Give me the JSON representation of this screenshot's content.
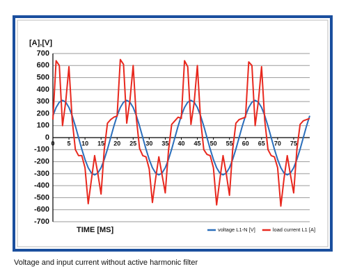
{
  "chart_data": {
    "type": "line",
    "y_label": "[A],[V]",
    "x_label": "TIME [MS]",
    "x": [
      0,
      1,
      2,
      3,
      4,
      5,
      6,
      7,
      8,
      9,
      10,
      11,
      12,
      13,
      14,
      15,
      16,
      17,
      18,
      19,
      20,
      21,
      22,
      23,
      24,
      25,
      26,
      27,
      28,
      29,
      30,
      31,
      32,
      33,
      34,
      35,
      36,
      37,
      38,
      39,
      40,
      41,
      42,
      43,
      44,
      45,
      46,
      47,
      48,
      49,
      50,
      51,
      52,
      53,
      54,
      55,
      56,
      57,
      58,
      59,
      60,
      61,
      62,
      63,
      64,
      65,
      66,
      67,
      68,
      69,
      70,
      71,
      72,
      73,
      74,
      75,
      76,
      77,
      78,
      79,
      80
    ],
    "series": [
      {
        "name": "voltage L1-N [V]",
        "color": "#2a6ebb",
        "values": [
          182,
          251,
          295,
          310,
          295,
          251,
          182,
          96,
          0,
          -96,
          -182,
          -251,
          -295,
          -310,
          -295,
          -251,
          -182,
          -96,
          0,
          96,
          182,
          251,
          295,
          310,
          295,
          251,
          182,
          96,
          0,
          -96,
          -182,
          -251,
          -295,
          -310,
          -295,
          -251,
          -182,
          -96,
          0,
          96,
          182,
          251,
          295,
          310,
          295,
          251,
          182,
          96,
          0,
          -96,
          -182,
          -251,
          -295,
          -310,
          -295,
          -251,
          -182,
          -96,
          0,
          96,
          182,
          251,
          295,
          310,
          295,
          251,
          182,
          96,
          0,
          -96,
          -182,
          -251,
          -295,
          -310,
          -295,
          -251,
          -182,
          -96,
          0,
          96,
          182
        ]
      },
      {
        "name": "load current L1 [A]",
        "color": "#e8281e",
        "values": [
          150,
          640,
          600,
          100,
          300,
          590,
          150,
          -100,
          -150,
          -150,
          -250,
          -550,
          -350,
          -150,
          -300,
          -470,
          -100,
          120,
          150,
          170,
          180,
          650,
          610,
          120,
          310,
          600,
          160,
          -90,
          -150,
          -160,
          -260,
          -540,
          -340,
          -160,
          -310,
          -460,
          -110,
          110,
          140,
          170,
          160,
          640,
          590,
          110,
          290,
          600,
          150,
          -100,
          -140,
          -150,
          -250,
          -560,
          -350,
          -150,
          -300,
          -480,
          -100,
          120,
          150,
          160,
          170,
          630,
          600,
          100,
          300,
          590,
          140,
          -100,
          -150,
          -160,
          -250,
          -570,
          -340,
          -150,
          -310,
          -460,
          -100,
          110,
          140,
          150,
          160
        ]
      }
    ],
    "xlim": [
      0,
      80
    ],
    "xticks": [
      0,
      5,
      10,
      15,
      20,
      25,
      30,
      35,
      40,
      45,
      50,
      55,
      60,
      65,
      70,
      75
    ],
    "ylim": [
      -700,
      700
    ],
    "yticks": [
      -700,
      -600,
      -500,
      -400,
      -300,
      -200,
      -100,
      0,
      100,
      200,
      300,
      400,
      500,
      600,
      700
    ],
    "grid": true,
    "legend": "bottom right"
  },
  "caption": "Voltage and input current without active harmonic filter"
}
